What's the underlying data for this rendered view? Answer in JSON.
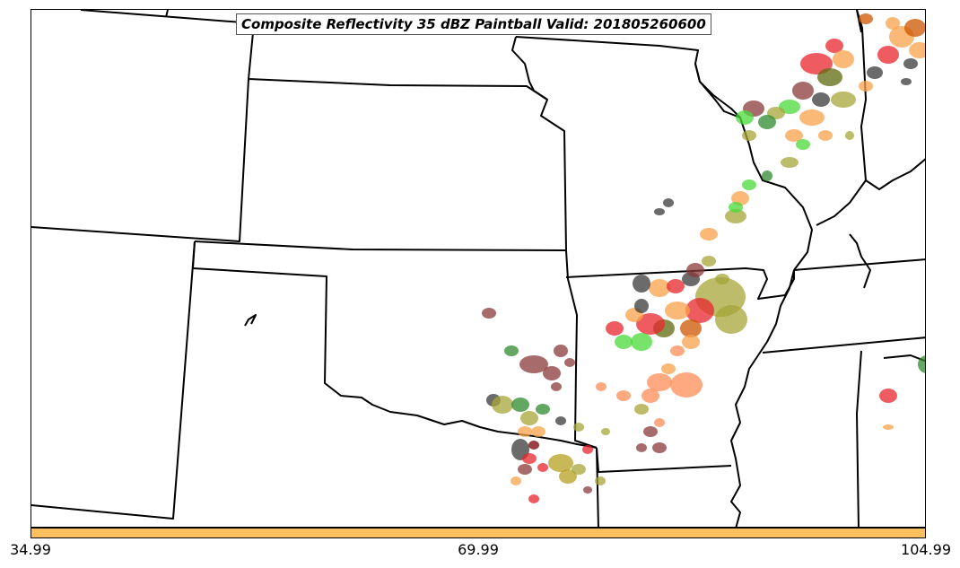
{
  "title": "Composite Reflectivity 35 dBZ Paintball Valid: 201805260600",
  "colorbar": {
    "color": "#fdc060",
    "tick_labels": [
      "34.99",
      "69.99",
      "104.99"
    ]
  },
  "member_colors": [
    "#e8262e",
    "#f9a24a",
    "#5f6b0f",
    "#8b3a3a",
    "#3a3a3a",
    "#4ad93a",
    "#a6a63a",
    "#2e8b2e",
    "#cc5500",
    "#ff8c55",
    "#7a0000",
    "#b5a020"
  ],
  "map_features": [
    "state-borders",
    "reflectivity-blobs"
  ]
}
